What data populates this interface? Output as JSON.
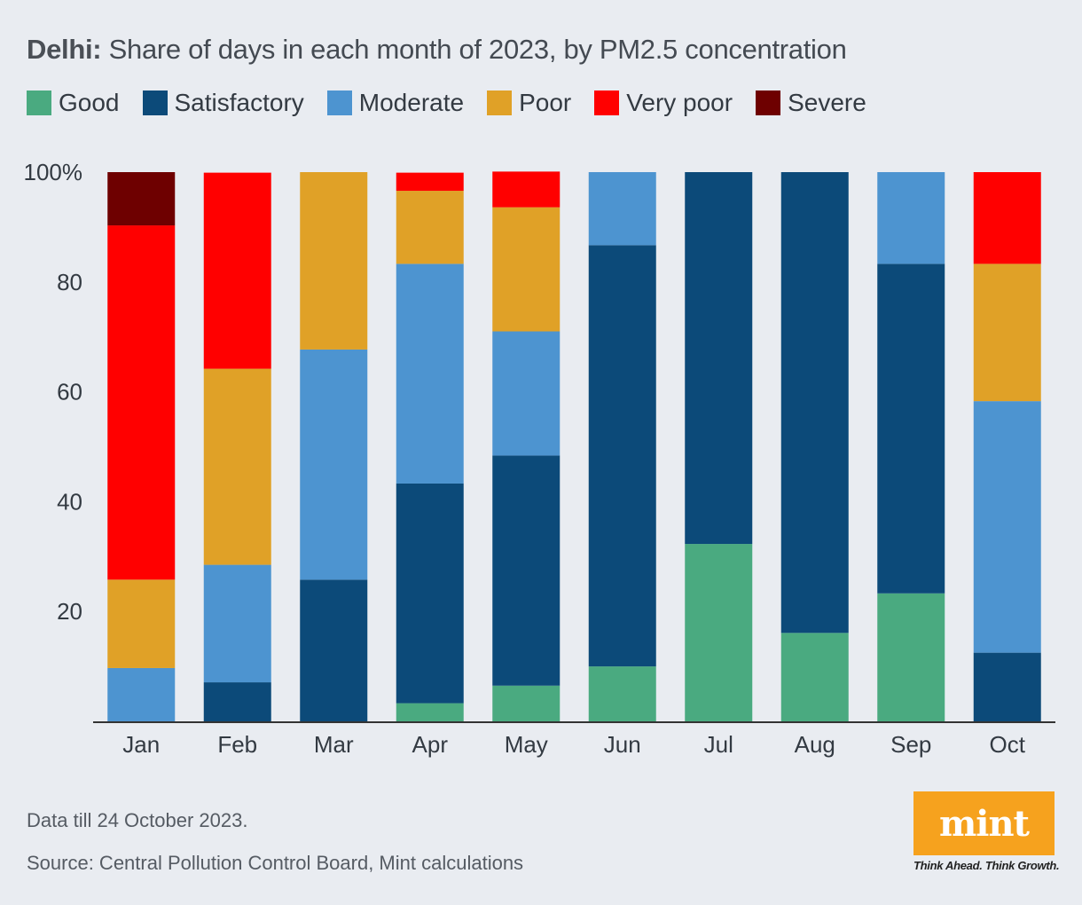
{
  "header": {
    "title_bold": "Delhi:",
    "title_rest": " Share of days in each month of 2023, by PM2.5 concentration"
  },
  "legend": [
    {
      "label": "Good",
      "color": "#4aaa80"
    },
    {
      "label": "Satisfactory",
      "color": "#0c4a79"
    },
    {
      "label": "Moderate",
      "color": "#4d94d0"
    },
    {
      "label": "Poor",
      "color": "#e0a127"
    },
    {
      "label": "Very poor",
      "color": "#ff0000"
    },
    {
      "label": "Severe",
      "color": "#6e0000"
    }
  ],
  "chart_data": {
    "type": "bar",
    "stacked": true,
    "title": "Delhi: Share of days in each month of 2023, by PM2.5 concentration",
    "categories": [
      "Jan",
      "Feb",
      "Mar",
      "Apr",
      "May",
      "Jun",
      "Jul",
      "Aug",
      "Sep",
      "Oct"
    ],
    "series": [
      {
        "name": "Good",
        "color": "#4aaa80",
        "values": [
          0,
          0,
          0,
          3.3,
          6.5,
          10,
          32.3,
          16.1,
          23.3,
          0
        ]
      },
      {
        "name": "Satisfactory",
        "color": "#0c4a79",
        "values": [
          0,
          7.1,
          25.8,
          40,
          41.9,
          76.7,
          67.7,
          83.9,
          60,
          12.5
        ]
      },
      {
        "name": "Moderate",
        "color": "#4d94d0",
        "values": [
          9.7,
          21.4,
          41.9,
          40,
          22.6,
          13.3,
          0,
          0,
          16.7,
          45.8
        ]
      },
      {
        "name": "Poor",
        "color": "#e0a127",
        "values": [
          16.1,
          35.7,
          32.3,
          13.3,
          22.6,
          0,
          0,
          0,
          0,
          25
        ]
      },
      {
        "name": "Very poor",
        "color": "#ff0000",
        "values": [
          64.5,
          35.7,
          0,
          3.3,
          6.5,
          0,
          0,
          0,
          0,
          16.7
        ]
      },
      {
        "name": "Severe",
        "color": "#6e0000",
        "values": [
          9.7,
          0,
          0,
          0,
          0,
          0,
          0,
          0,
          0,
          0
        ]
      }
    ],
    "ylim": [
      0,
      100
    ],
    "yticks": [
      {
        "value": 20,
        "label": "20"
      },
      {
        "value": 40,
        "label": "40"
      },
      {
        "value": 60,
        "label": "60"
      },
      {
        "value": 80,
        "label": "80"
      },
      {
        "value": 100,
        "label": "100%"
      }
    ],
    "xlabel": "",
    "ylabel": "",
    "grid": false,
    "legend_position": "top-left"
  },
  "footer": {
    "note": "Data till 24 October 2023.",
    "source": "Source: Central Pollution Control Board, Mint calculations"
  },
  "logo": {
    "word": "mint",
    "tagline": "Think Ahead. Think Growth."
  }
}
